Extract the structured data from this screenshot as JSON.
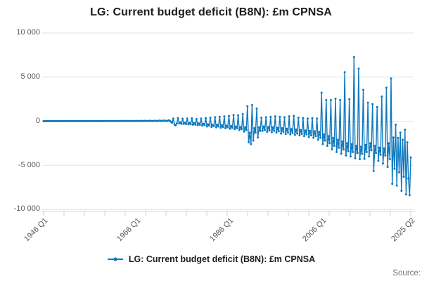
{
  "title": "LG: Current budget deficit (B8N): £m CPNSA",
  "legend": {
    "label": "LG: Current budget deficit (B8N): £m CPNSA"
  },
  "source": {
    "label": "Source:"
  },
  "colors": {
    "line": "#1079bf",
    "grid": "#e2e2e2",
    "axis": "#c6d4e1",
    "tick_text": "#595959",
    "title_text": "#1c1c1c",
    "source_text": "#737373"
  },
  "chart_data": {
    "type": "line",
    "title": "LG: Current budget deficit (B8N): £m CPNSA",
    "series_name": "LG: Current budget deficit (B8N): £m CPNSA",
    "unit": "£m",
    "frequency": "quarterly",
    "start": "1946 Q1",
    "end": "2025 Q2",
    "xlabel": "",
    "ylabel": "",
    "ylim": [
      -10000,
      10000
    ],
    "grid": "horizontal",
    "legend_position": "bottom-center",
    "y_ticks": [
      10000,
      5000,
      0,
      -5000,
      -10000
    ],
    "y_tick_labels": [
      "10 000",
      "5 000",
      "0",
      "-5 000",
      "-10 000"
    ],
    "x_tick_labels": [
      "1946 Q1",
      "1966 Q1",
      "1986 Q1",
      "2006 Q1",
      "2025 Q2"
    ],
    "x_label_positions": [
      0,
      80,
      160,
      240,
      317
    ],
    "values": [
      5,
      2,
      3,
      6,
      8,
      3,
      4,
      7,
      9,
      4,
      5,
      8,
      10,
      5,
      6,
      9,
      11,
      5,
      6,
      10,
      12,
      6,
      7,
      10,
      13,
      6,
      8,
      11,
      14,
      7,
      8,
      12,
      15,
      7,
      9,
      12,
      16,
      8,
      10,
      13,
      17,
      8,
      10,
      14,
      18,
      9,
      11,
      15,
      19,
      9,
      11,
      15,
      20,
      10,
      12,
      16,
      22,
      10,
      13,
      17,
      24,
      11,
      14,
      18,
      26,
      12,
      15,
      19,
      28,
      13,
      16,
      20,
      30,
      14,
      17,
      22,
      32,
      15,
      18,
      24,
      35,
      16,
      20,
      26,
      38,
      18,
      22,
      28,
      42,
      20,
      24,
      30,
      46,
      22,
      26,
      33,
      50,
      24,
      28,
      36,
      60,
      28,
      32,
      40,
      75,
      35,
      40,
      20,
      95,
      40,
      -60,
      -180,
      300,
      -400,
      -480,
      -250,
      350,
      -250,
      -150,
      -300,
      280,
      -300,
      -180,
      -320,
      300,
      -350,
      -200,
      -350,
      320,
      -400,
      -220,
      -380,
      250,
      -450,
      -250,
      -420,
      300,
      -500,
      -300,
      -450,
      350,
      -600,
      -350,
      -500,
      400,
      -650,
      -400,
      -550,
      450,
      -700,
      -400,
      -600,
      500,
      -750,
      -450,
      -650,
      550,
      -800,
      -500,
      -700,
      600,
      -850,
      -550,
      -750,
      700,
      -900,
      -600,
      -800,
      650,
      -1000,
      -650,
      -900,
      800,
      -1180,
      -700,
      -1000,
      1700,
      -2400,
      -1300,
      -2600,
      1830,
      -2200,
      -800,
      -1300,
      1430,
      -1850,
      -700,
      -1100,
      400,
      -1100,
      -600,
      -1000,
      450,
      -1200,
      -650,
      -1050,
      500,
      -1250,
      -700,
      -1100,
      550,
      -1300,
      -750,
      -1150,
      500,
      -1400,
      -800,
      -1200,
      450,
      -1450,
      -850,
      -1300,
      550,
      -1500,
      -900,
      -1350,
      600,
      -1550,
      -950,
      -1400,
      400,
      -1600,
      -1000,
      -1450,
      350,
      -1700,
      -1050,
      -1500,
      300,
      -1800,
      -1100,
      -1600,
      350,
      -1900,
      -1150,
      -1700,
      300,
      -2100,
      -1200,
      -1900,
      3230,
      -2600,
      -1500,
      -2200,
      2400,
      -2800,
      -1700,
      -2500,
      2400,
      -3200,
      -1900,
      -2800,
      2550,
      -3500,
      -2100,
      -3000,
      2400,
      -3700,
      -2300,
      -3200,
      5560,
      -3900,
      -2500,
      -3400,
      2500,
      -4000,
      -2600,
      -3500,
      7260,
      -4200,
      -2800,
      -3600,
      5950,
      -4300,
      -2900,
      -3700,
      3550,
      -4270,
      -2700,
      -3500,
      2100,
      -4000,
      -2500,
      -3300,
      1930,
      -5650,
      -2800,
      -3600,
      1600,
      -4500,
      -3000,
      -3800,
      2800,
      -4800,
      -3100,
      -3900,
      3790,
      -5200,
      -2500,
      -4300,
      4840,
      -7100,
      -1850,
      -5400,
      -400,
      -7300,
      -1900,
      -5800,
      -1290,
      -7900,
      -2100,
      -6300,
      -970,
      -8300,
      -2400,
      -6500,
      -8400,
      -4100
    ]
  }
}
